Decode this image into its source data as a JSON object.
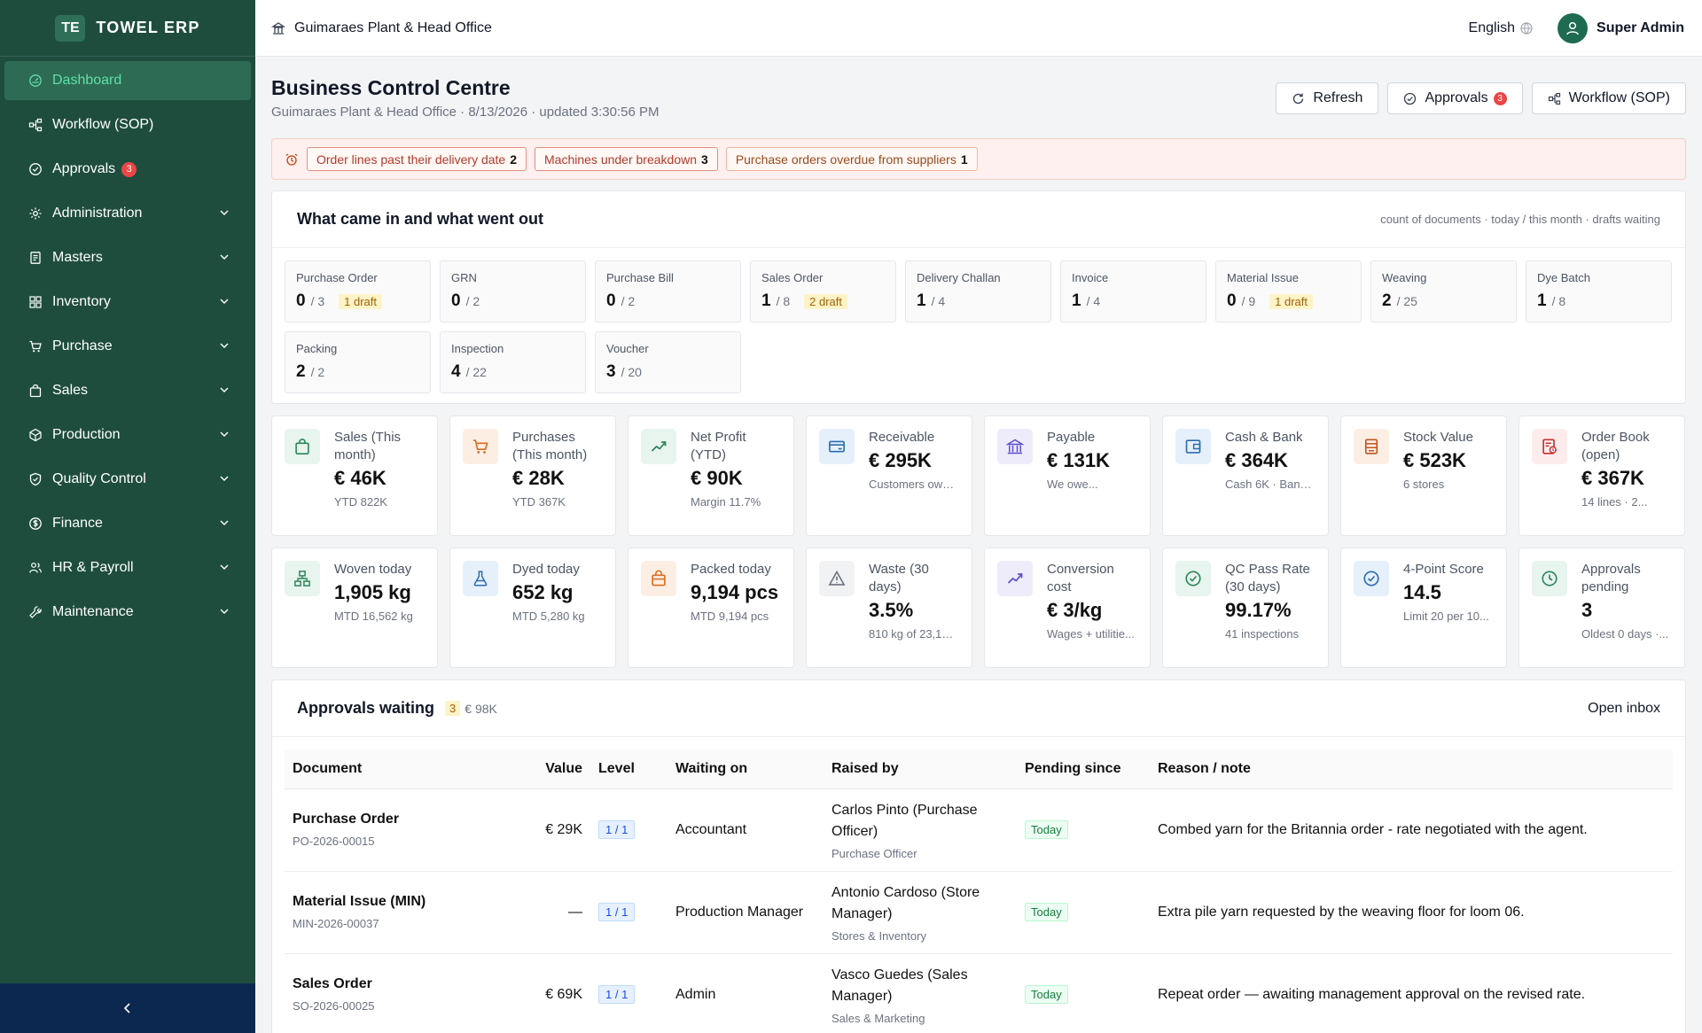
{
  "brand": {
    "logo": "TE",
    "name": "TOWEL ERP"
  },
  "sidebar": {
    "items": [
      {
        "label": "Dashboard",
        "icon": "dashboard-icon",
        "active": true
      },
      {
        "label": "Workflow (SOP)",
        "icon": "workflow-icon"
      },
      {
        "label": "Approvals",
        "icon": "approvals-icon",
        "badge": "3"
      },
      {
        "label": "Administration",
        "icon": "gear-icon",
        "expandable": true
      },
      {
        "label": "Masters",
        "icon": "masters-icon",
        "expandable": true
      },
      {
        "label": "Inventory",
        "icon": "inventory-icon",
        "expandable": true
      },
      {
        "label": "Purchase",
        "icon": "cart-icon",
        "expandable": true
      },
      {
        "label": "Sales",
        "icon": "bag-icon",
        "expandable": true
      },
      {
        "label": "Production",
        "icon": "production-icon",
        "expandable": true
      },
      {
        "label": "Quality Control",
        "icon": "shield-icon",
        "expandable": true
      },
      {
        "label": "Finance",
        "icon": "dollar-icon",
        "expandable": true
      },
      {
        "label": "HR & Payroll",
        "icon": "people-icon",
        "expandable": true
      },
      {
        "label": "Maintenance",
        "icon": "wrench-icon",
        "expandable": true
      }
    ],
    "collapse_icon": "chevron-left-icon"
  },
  "topbar": {
    "org": "Guimaraes Plant & Head Office",
    "language": "English",
    "user": "Super Admin"
  },
  "page": {
    "title": "Business Control Centre",
    "subtitle": "Guimaraes Plant & Head Office · 8/13/2026 · updated 3:30:56 PM",
    "actions": {
      "refresh": "Refresh",
      "approvals": "Approvals",
      "approvals_badge": "3",
      "workflow": "Workflow (SOP)"
    }
  },
  "alerts": [
    {
      "label": "Order lines past their delivery date",
      "count": "2",
      "tone": "red"
    },
    {
      "label": "Machines under breakdown",
      "count": "3",
      "tone": "red"
    },
    {
      "label": "Purchase orders overdue from suppliers",
      "count": "1",
      "tone": "orange"
    }
  ],
  "flow": {
    "title": "What came in and what went out",
    "note": "count of documents · today / this month · drafts waiting",
    "docs": [
      {
        "name": "Purchase Order",
        "today": "0",
        "month": "/ 3",
        "draft": "1 draft"
      },
      {
        "name": "GRN",
        "today": "0",
        "month": "/ 2",
        "draft": ""
      },
      {
        "name": "Purchase Bill",
        "today": "0",
        "month": "/ 2",
        "draft": ""
      },
      {
        "name": "Sales Order",
        "today": "1",
        "month": "/ 8",
        "draft": "2 draft"
      },
      {
        "name": "Delivery Challan",
        "today": "1",
        "month": "/ 4",
        "draft": ""
      },
      {
        "name": "Invoice",
        "today": "1",
        "month": "/ 4",
        "draft": ""
      },
      {
        "name": "Material Issue",
        "today": "0",
        "month": "/ 9",
        "draft": "1 draft"
      },
      {
        "name": "Weaving",
        "today": "2",
        "month": "/ 25",
        "draft": ""
      },
      {
        "name": "Dye Batch",
        "today": "1",
        "month": "/ 8",
        "draft": ""
      },
      {
        "name": "Packing",
        "today": "2",
        "month": "/ 2",
        "draft": ""
      },
      {
        "name": "Inspection",
        "today": "4",
        "month": "/ 22",
        "draft": ""
      },
      {
        "name": "Voucher",
        "today": "3",
        "month": "/ 20",
        "draft": ""
      }
    ]
  },
  "kpis_finance": [
    {
      "label": "Sales (This month)",
      "value": "€ 46K",
      "sub": "YTD 822K",
      "icon": "bag-icon",
      "color": "#2f855a",
      "bg": "#e7f5ee"
    },
    {
      "label": "Purchases (This month)",
      "value": "€ 28K",
      "sub": "YTD 367K",
      "icon": "cart-icon",
      "color": "#dd6b20",
      "bg": "#fdeee4"
    },
    {
      "label": "Net Profit (YTD)",
      "value": "€ 90K",
      "sub": "Margin 11.7%",
      "icon": "trend-up-icon",
      "color": "#2f855a",
      "bg": "#e7f5ee"
    },
    {
      "label": "Receivable",
      "value": "€ 295K",
      "sub": "Customers owe...",
      "icon": "card-icon",
      "color": "#2b6cb0",
      "bg": "#e6f0fb"
    },
    {
      "label": "Payable",
      "value": "€ 131K",
      "sub": "We owe...",
      "icon": "bank-icon",
      "color": "#5a4fcf",
      "bg": "#eeecfb"
    },
    {
      "label": "Cash & Bank",
      "value": "€ 364K",
      "sub": "Cash 6K · Bank...",
      "icon": "wallet-icon",
      "color": "#2b6cb0",
      "bg": "#e6f0fb"
    },
    {
      "label": "Stock Value",
      "value": "€ 523K",
      "sub": "6 stores",
      "icon": "box-icon",
      "color": "#c05621",
      "bg": "#fdeee4"
    },
    {
      "label": "Order Book (open)",
      "value": "€ 367K",
      "sub": "14 lines · 2...",
      "icon": "order-icon",
      "color": "#c53030",
      "bg": "#fdecec"
    }
  ],
  "kpis_ops": [
    {
      "label": "Woven today",
      "value": "1,905 kg",
      "sub": "MTD 16,562 kg",
      "icon": "network-icon",
      "color": "#2f855a",
      "bg": "#e7f5ee"
    },
    {
      "label": "Dyed today",
      "value": "652 kg",
      "sub": "MTD 5,280 kg",
      "icon": "flask-icon",
      "color": "#2b6cb0",
      "bg": "#e6f0fb"
    },
    {
      "label": "Packed today",
      "value": "9,194 pcs",
      "sub": "MTD 9,194 pcs",
      "icon": "package-icon",
      "color": "#dd6b20",
      "bg": "#fdeee4"
    },
    {
      "label": "Waste (30 days)",
      "value": "3.5%",
      "sub": "810 kg of 23,14...",
      "icon": "warning-icon",
      "color": "#6b7280",
      "bg": "#f1f2f4"
    },
    {
      "label": "Conversion cost",
      "value": "€ 3/kg",
      "sub": "Wages + utilitie...",
      "icon": "trend-up-icon",
      "color": "#5a4fcf",
      "bg": "#eeecfb"
    },
    {
      "label": "QC Pass Rate (30 days)",
      "value": "99.17%",
      "sub": "41 inspections",
      "icon": "check-circle-icon",
      "color": "#2f855a",
      "bg": "#e7f5ee"
    },
    {
      "label": "4-Point Score",
      "value": "14.5",
      "sub": "Limit 20 per 10...",
      "icon": "check-circle-icon",
      "color": "#2b6cb0",
      "bg": "#e6f0fb"
    },
    {
      "label": "Approvals pending",
      "value": "3",
      "sub": "Oldest 0 days ·...",
      "icon": "clock-icon",
      "color": "#2f855a",
      "bg": "#e7f5ee"
    }
  ],
  "approvals": {
    "title": "Approvals waiting",
    "count": "3",
    "value": "€ 98K",
    "link": "Open inbox",
    "columns": [
      "Document",
      "Value",
      "Level",
      "Waiting on",
      "Raised by",
      "Pending since",
      "Reason / note"
    ],
    "rows": [
      {
        "doc": "Purchase Order",
        "no": "PO-2026-00015",
        "value": "€ 29K",
        "level": "1 / 1",
        "waiting": "Accountant",
        "raised": "Carlos Pinto (Purchase Officer)",
        "dept": "Purchase Officer",
        "since": "Today",
        "note": "Combed yarn for the Britannia order - rate negotiated with the agent."
      },
      {
        "doc": "Material Issue (MIN)",
        "no": "MIN-2026-00037",
        "value": "—",
        "level": "1 / 1",
        "waiting": "Production Manager",
        "raised": "Antonio Cardoso (Store Manager)",
        "dept": "Stores & Inventory",
        "since": "Today",
        "note": "Extra pile yarn requested by the weaving floor for loom 06."
      },
      {
        "doc": "Sales Order",
        "no": "SO-2026-00025",
        "value": "€ 69K",
        "level": "1 / 1",
        "waiting": "Admin",
        "raised": "Vasco Guedes (Sales Manager)",
        "dept": "Sales & Marketing",
        "since": "Today",
        "note": "Repeat order — awaiting management approval on the revised rate."
      }
    ]
  }
}
